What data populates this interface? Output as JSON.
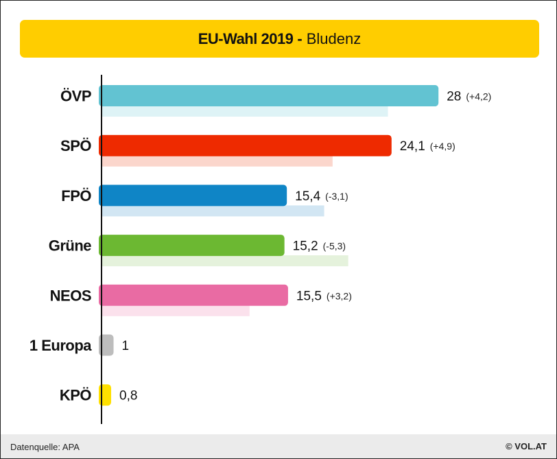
{
  "title": {
    "main": "EU-Wahl 2019",
    "separator": "-",
    "sub": "Bludenz"
  },
  "footer": {
    "source": "Datenquelle: APA",
    "brand": "© VOL.AT"
  },
  "chart_data": {
    "type": "bar",
    "orientation": "horizontal",
    "title": "EU-Wahl 2019 - Bludenz",
    "xlim": [
      0,
      28.5
    ],
    "grid": false,
    "categories": [
      "ÖVP",
      "SPÖ",
      "FPÖ",
      "Grüne",
      "NEOS",
      "1 Europa",
      "KPÖ"
    ],
    "series": [
      {
        "role": "current",
        "values": [
          28,
          24.1,
          15.4,
          15.2,
          15.5,
          1,
          0.8
        ],
        "labels": [
          "28",
          "24,1",
          "15,4",
          "15,2",
          "15,5",
          "1",
          "0,8"
        ]
      },
      {
        "role": "previous",
        "values": [
          23.8,
          19.2,
          18.5,
          20.5,
          12.3,
          null,
          null
        ]
      }
    ],
    "changes": [
      "(+4,2)",
      "(+4,9)",
      "(-3,1)",
      "(-5,3)",
      "(+3,2)",
      "",
      ""
    ],
    "colors": [
      "#62c3d2",
      "#ee2a00",
      "#0f85c6",
      "#6cb832",
      "#e96ba3",
      "#bdbdbd",
      "#ffe000"
    ],
    "previous_colors": [
      "#def3f6",
      "#fbd6cc",
      "#d2e6f3",
      "#e5f2dc",
      "#fbe1ec",
      "",
      ""
    ]
  }
}
